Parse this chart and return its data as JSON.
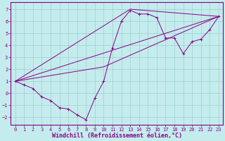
{
  "background_color": "#c4eced",
  "grid_color": "#9dcfcf",
  "line_color": "#880088",
  "xlim": [
    -0.5,
    23.5
  ],
  "ylim": [
    -2.6,
    7.6
  ],
  "yticks": [
    -2,
    -1,
    0,
    1,
    2,
    3,
    4,
    5,
    6,
    7
  ],
  "xticks": [
    0,
    1,
    2,
    3,
    4,
    5,
    6,
    7,
    8,
    9,
    10,
    11,
    12,
    13,
    14,
    15,
    16,
    17,
    18,
    19,
    20,
    21,
    22,
    23
  ],
  "xlabel": "Windchill (Refroidissement éolien,°C)",
  "xlabel_fontsize": 6,
  "tick_fontsize": 5,
  "main_series": [
    [
      0,
      1.0
    ],
    [
      1,
      0.7
    ],
    [
      2,
      0.4
    ],
    [
      3,
      -0.3
    ],
    [
      4,
      -0.6
    ],
    [
      5,
      -1.2
    ],
    [
      6,
      -1.3
    ],
    [
      7,
      -1.8
    ],
    [
      8,
      -2.2
    ],
    [
      9,
      -0.4
    ],
    [
      10,
      1.0
    ],
    [
      11,
      3.8
    ],
    [
      12,
      6.0
    ],
    [
      13,
      6.9
    ],
    [
      14,
      6.6
    ],
    [
      15,
      6.6
    ],
    [
      16,
      6.3
    ],
    [
      17,
      4.6
    ],
    [
      18,
      4.6
    ],
    [
      19,
      3.3
    ],
    [
      20,
      4.3
    ],
    [
      21,
      4.5
    ],
    [
      22,
      5.3
    ],
    [
      23,
      6.4
    ]
  ],
  "straight_lines": [
    [
      [
        0,
        1.0
      ],
      [
        23,
        6.4
      ]
    ],
    [
      [
        0,
        1.0
      ],
      [
        10,
        2.2
      ],
      [
        23,
        6.4
      ]
    ],
    [
      [
        0,
        1.0
      ],
      [
        13,
        7.0
      ],
      [
        23,
        6.4
      ]
    ]
  ]
}
